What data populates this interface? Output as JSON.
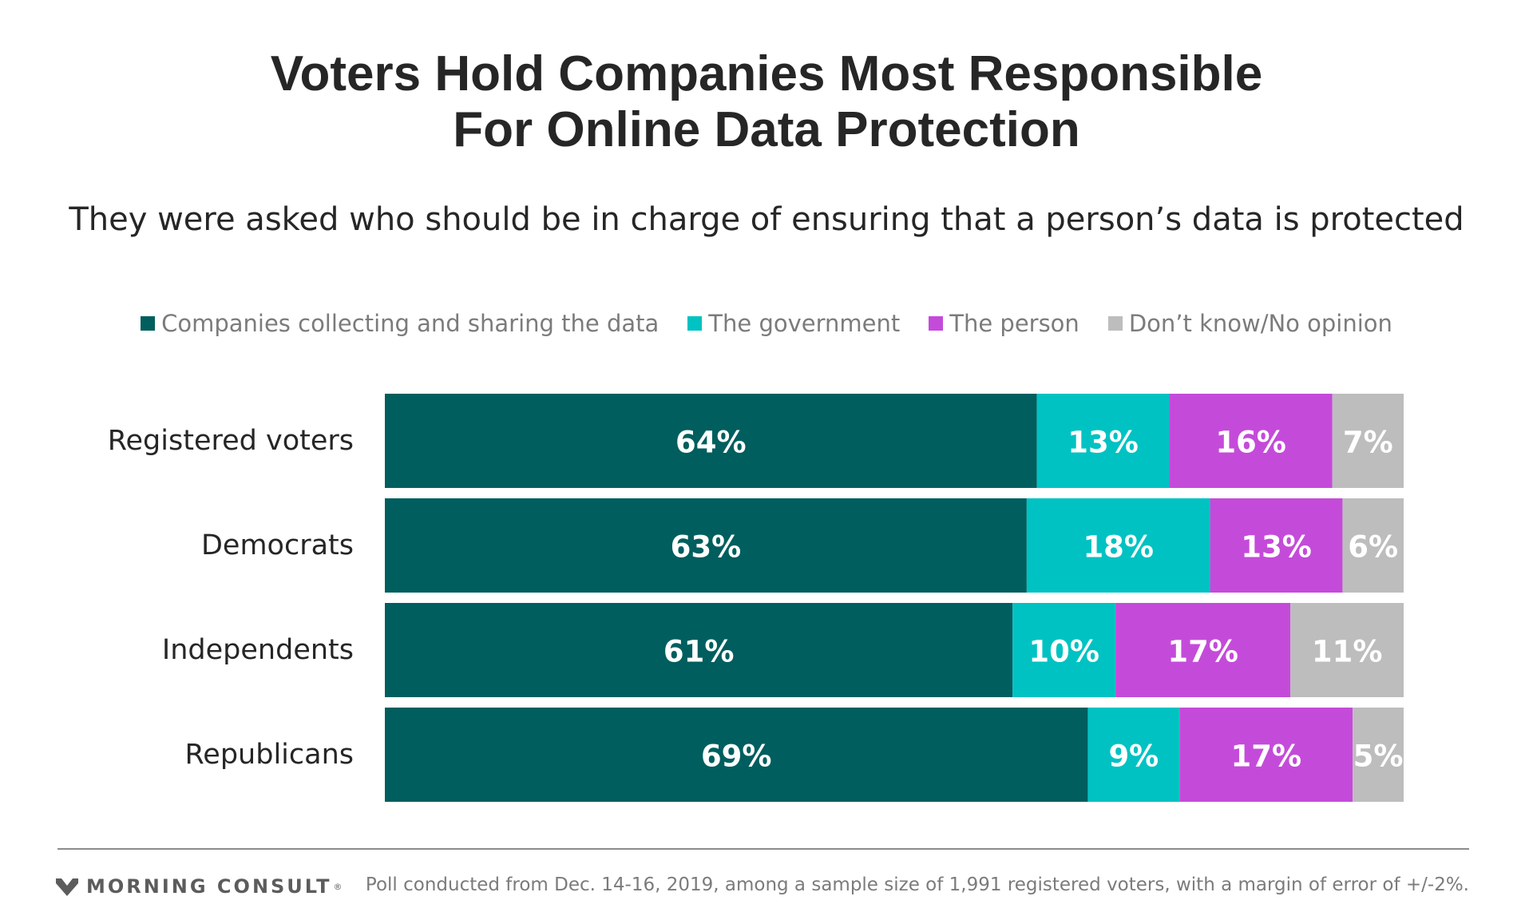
{
  "header": {
    "title_line1": "Voters Hold Companies Most Responsible",
    "title_line2": "For Online Data Protection",
    "subtitle": "They were asked who should be in charge of ensuring that a person’s data is protected"
  },
  "chart_data": {
    "type": "bar",
    "orientation": "horizontal",
    "stacked": true,
    "normalized": true,
    "categories": [
      "Registered voters",
      "Democrats",
      "Independents",
      "Republicans"
    ],
    "series": [
      {
        "name": "Companies collecting and sharing the data",
        "color": "#005e5e",
        "values": [
          64,
          63,
          61,
          69
        ]
      },
      {
        "name": "The government",
        "color": "#00c2c2",
        "values": [
          13,
          18,
          10,
          9
        ]
      },
      {
        "name": "The person",
        "color": "#c44bd9",
        "values": [
          16,
          13,
          17,
          17
        ]
      },
      {
        "name": "Don’t know/No opinion",
        "color": "#bdbdbd",
        "values": [
          7,
          6,
          11,
          5
        ]
      }
    ],
    "value_suffix": "%",
    "legend_position": "top-center",
    "grid": false,
    "axes_visible": false
  },
  "footer": {
    "brand": "MORNING CONSULT",
    "brand_mark": "®",
    "note": "Poll conducted from Dec. 14-16, 2019, among a sample size of 1,991 registered voters, with a margin of error of +/-2%."
  },
  "icons": {
    "logo": "morning-consult-logo-icon"
  }
}
